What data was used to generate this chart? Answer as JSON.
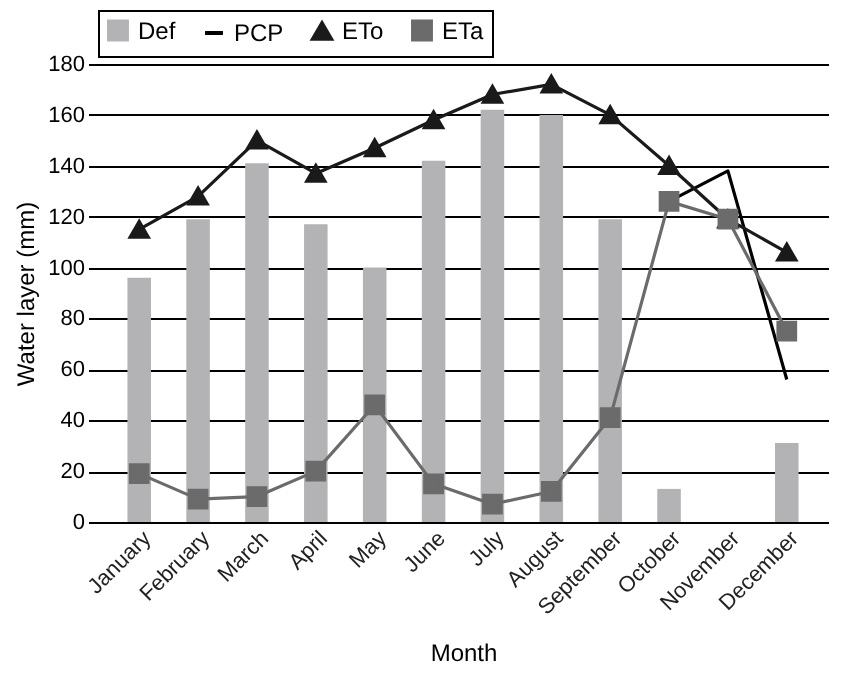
{
  "chart_data": {
    "type": "bar",
    "xlabel": "Month",
    "ylabel": "Water layer (mm)",
    "categories": [
      "January",
      "February",
      "March",
      "April",
      "May",
      "June",
      "July",
      "August",
      "September",
      "October",
      "November",
      "December"
    ],
    "series": [
      {
        "name": "Def",
        "color": "#b3b3b5",
        "values": [
          96,
          119,
          141,
          117,
          100,
          142,
          162,
          160,
          119,
          13,
          0,
          31
        ]
      },
      {
        "name": "PCP",
        "type": "line",
        "color": "#000000",
        "marker": "none",
        "values": [
          null,
          null,
          null,
          null,
          null,
          null,
          null,
          null,
          null,
          126,
          138,
          56
        ]
      },
      {
        "name": "ETo",
        "type": "line",
        "color": "#1a1a1a",
        "marker": "triangle",
        "values": [
          115,
          128,
          150,
          137,
          147,
          158,
          168,
          172,
          160,
          140,
          119,
          106
        ]
      },
      {
        "name": "ETa",
        "type": "line",
        "color": "#6b6b6b",
        "marker": "square",
        "values": [
          19,
          9,
          10,
          20,
          46,
          15,
          7,
          12,
          41,
          126,
          119,
          75
        ]
      }
    ],
    "ylim": [
      0,
      180
    ],
    "yticks": [
      0,
      20,
      40,
      60,
      80,
      100,
      120,
      140,
      160,
      180
    ],
    "grid": "y",
    "legend": "top"
  }
}
